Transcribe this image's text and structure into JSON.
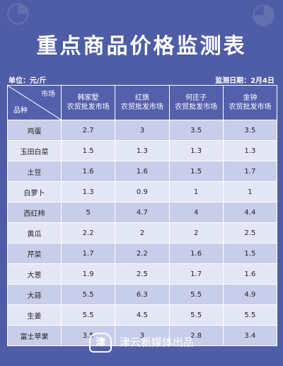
{
  "title": "重点商品价格监测表",
  "unit": "单位：元/斤",
  "date": "监测日期：2月4日",
  "table": {
    "corner_market": "市场",
    "corner_product": "品种",
    "markets": [
      "韩家墅\n农贸批发市场",
      "红旗\n农贸批发市场",
      "何庄子\n农贸批发市场",
      "金钟\n农贸批发市场"
    ],
    "rows": [
      {
        "name": "鸡蛋",
        "v": [
          "2.7",
          "3",
          "3.5",
          "3.5"
        ]
      },
      {
        "name": "玉田白菜",
        "v": [
          "1.5",
          "1.3",
          "1.3",
          "1.3"
        ]
      },
      {
        "name": "土豆",
        "v": [
          "1.6",
          "1.6",
          "1.5",
          "1.7"
        ]
      },
      {
        "name": "白萝卜",
        "v": [
          "1.3",
          "0.9",
          "1",
          "1"
        ]
      },
      {
        "name": "西红柿",
        "v": [
          "5",
          "4.7",
          "4",
          "4.4"
        ]
      },
      {
        "name": "黄瓜",
        "v": [
          "2.2",
          "2",
          "2",
          "2.5"
        ]
      },
      {
        "name": "芹菜",
        "v": [
          "1.7",
          "2.2",
          "1.6",
          "1.5"
        ]
      },
      {
        "name": "大葱",
        "v": [
          "1.9",
          "2.5",
          "1.7",
          "1.6"
        ]
      },
      {
        "name": "大蒜",
        "v": [
          "5.5",
          "6.3",
          "5.5",
          "4.9"
        ]
      },
      {
        "name": "生姜",
        "v": [
          "5.5",
          "4.5",
          "5.5",
          "5.5"
        ]
      },
      {
        "name": "富士苹果",
        "v": [
          "3.5",
          "3",
          "2.8",
          "3.4"
        ]
      }
    ]
  },
  "footer": {
    "logo_char": "津",
    "text": "津云新媒体出品"
  }
}
